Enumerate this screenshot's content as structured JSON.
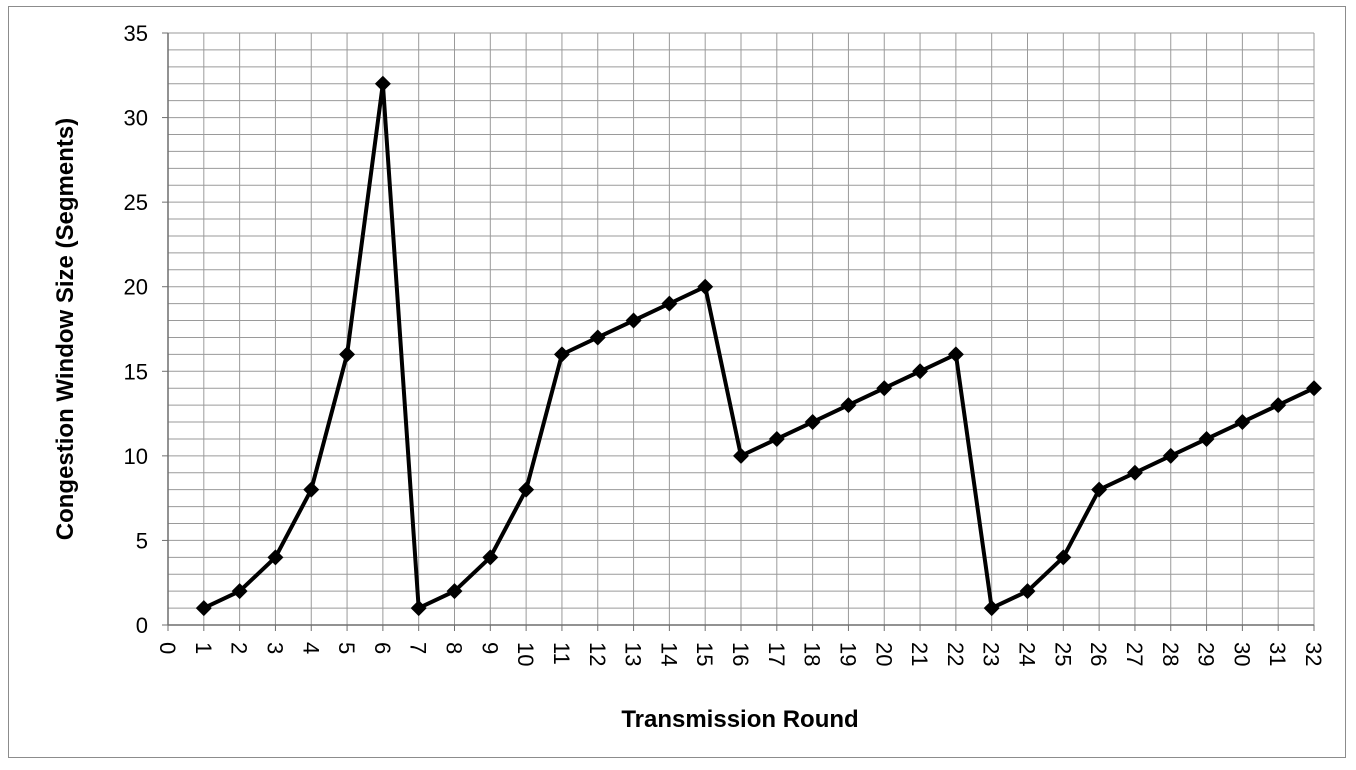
{
  "chart_data": {
    "type": "line",
    "title": "",
    "xlabel": "Transmission Round",
    "ylabel": "Congestion Window Size (Segments)",
    "xlim": [
      0,
      32
    ],
    "ylim": [
      0,
      35
    ],
    "x_ticks": [
      0,
      1,
      2,
      3,
      4,
      5,
      6,
      7,
      8,
      9,
      10,
      11,
      12,
      13,
      14,
      15,
      16,
      17,
      18,
      19,
      20,
      21,
      22,
      23,
      24,
      25,
      26,
      27,
      28,
      29,
      30,
      31,
      32
    ],
    "y_ticks": [
      0,
      5,
      10,
      15,
      20,
      25,
      30,
      35
    ],
    "grid": true,
    "y_minor_step": 1,
    "legend": "none",
    "series": [
      {
        "color": "#000000",
        "marker": "diamond",
        "x": [
          1,
          2,
          3,
          4,
          5,
          6,
          7,
          8,
          9,
          10,
          11,
          12,
          13,
          14,
          15,
          16,
          17,
          18,
          19,
          20,
          21,
          22,
          23,
          24,
          25,
          26,
          27,
          28,
          29,
          30,
          31,
          32
        ],
        "values": [
          1,
          2,
          4,
          8,
          16,
          32,
          1,
          2,
          4,
          8,
          16,
          17,
          18,
          19,
          20,
          10,
          11,
          12,
          13,
          14,
          15,
          16,
          1,
          2,
          4,
          8,
          9,
          10,
          11,
          12,
          13,
          14
        ]
      }
    ]
  }
}
